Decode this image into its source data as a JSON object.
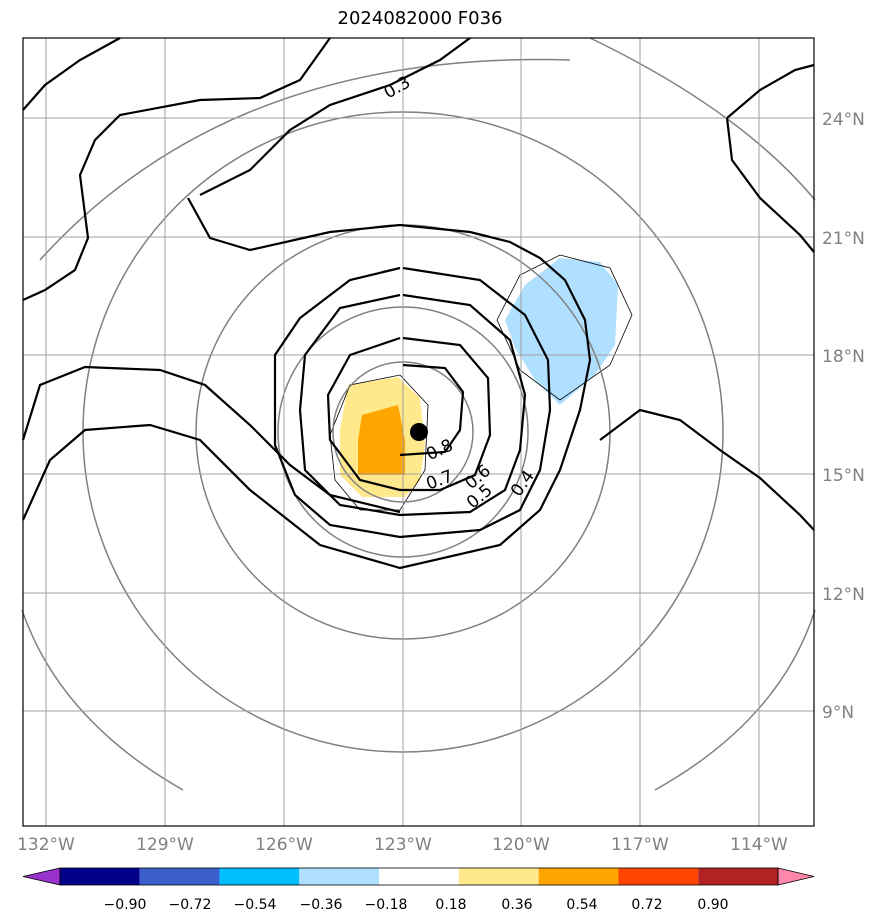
{
  "title": "2024082000 F036",
  "map": {
    "lon_ticks": [
      "132°W",
      "129°W",
      "126°W",
      "123°W",
      "120°W",
      "117°W",
      "114°W"
    ],
    "lat_ticks": [
      "24°N",
      "21°N",
      "18°N",
      "15°N",
      "12°N",
      "9°N"
    ],
    "contour_labels": [
      "0.3",
      "0.8",
      "0.7",
      "0.6",
      "0.5",
      "0.4"
    ],
    "center_marker": "storm-center-dot"
  },
  "colorbar": {
    "labels": [
      "−0.90",
      "−0.72",
      "−0.54",
      "−0.36",
      "−0.18",
      "0.18",
      "0.36",
      "0.54",
      "0.72",
      "0.90"
    ],
    "colors": [
      "#9932cc",
      "#00008b",
      "#3a5fcd",
      "#00bfff",
      "#b0e0ff",
      "#ffffff",
      "#ffe98c",
      "#ffa500",
      "#ff4500",
      "#b22222",
      "#ff88aa"
    ]
  }
}
